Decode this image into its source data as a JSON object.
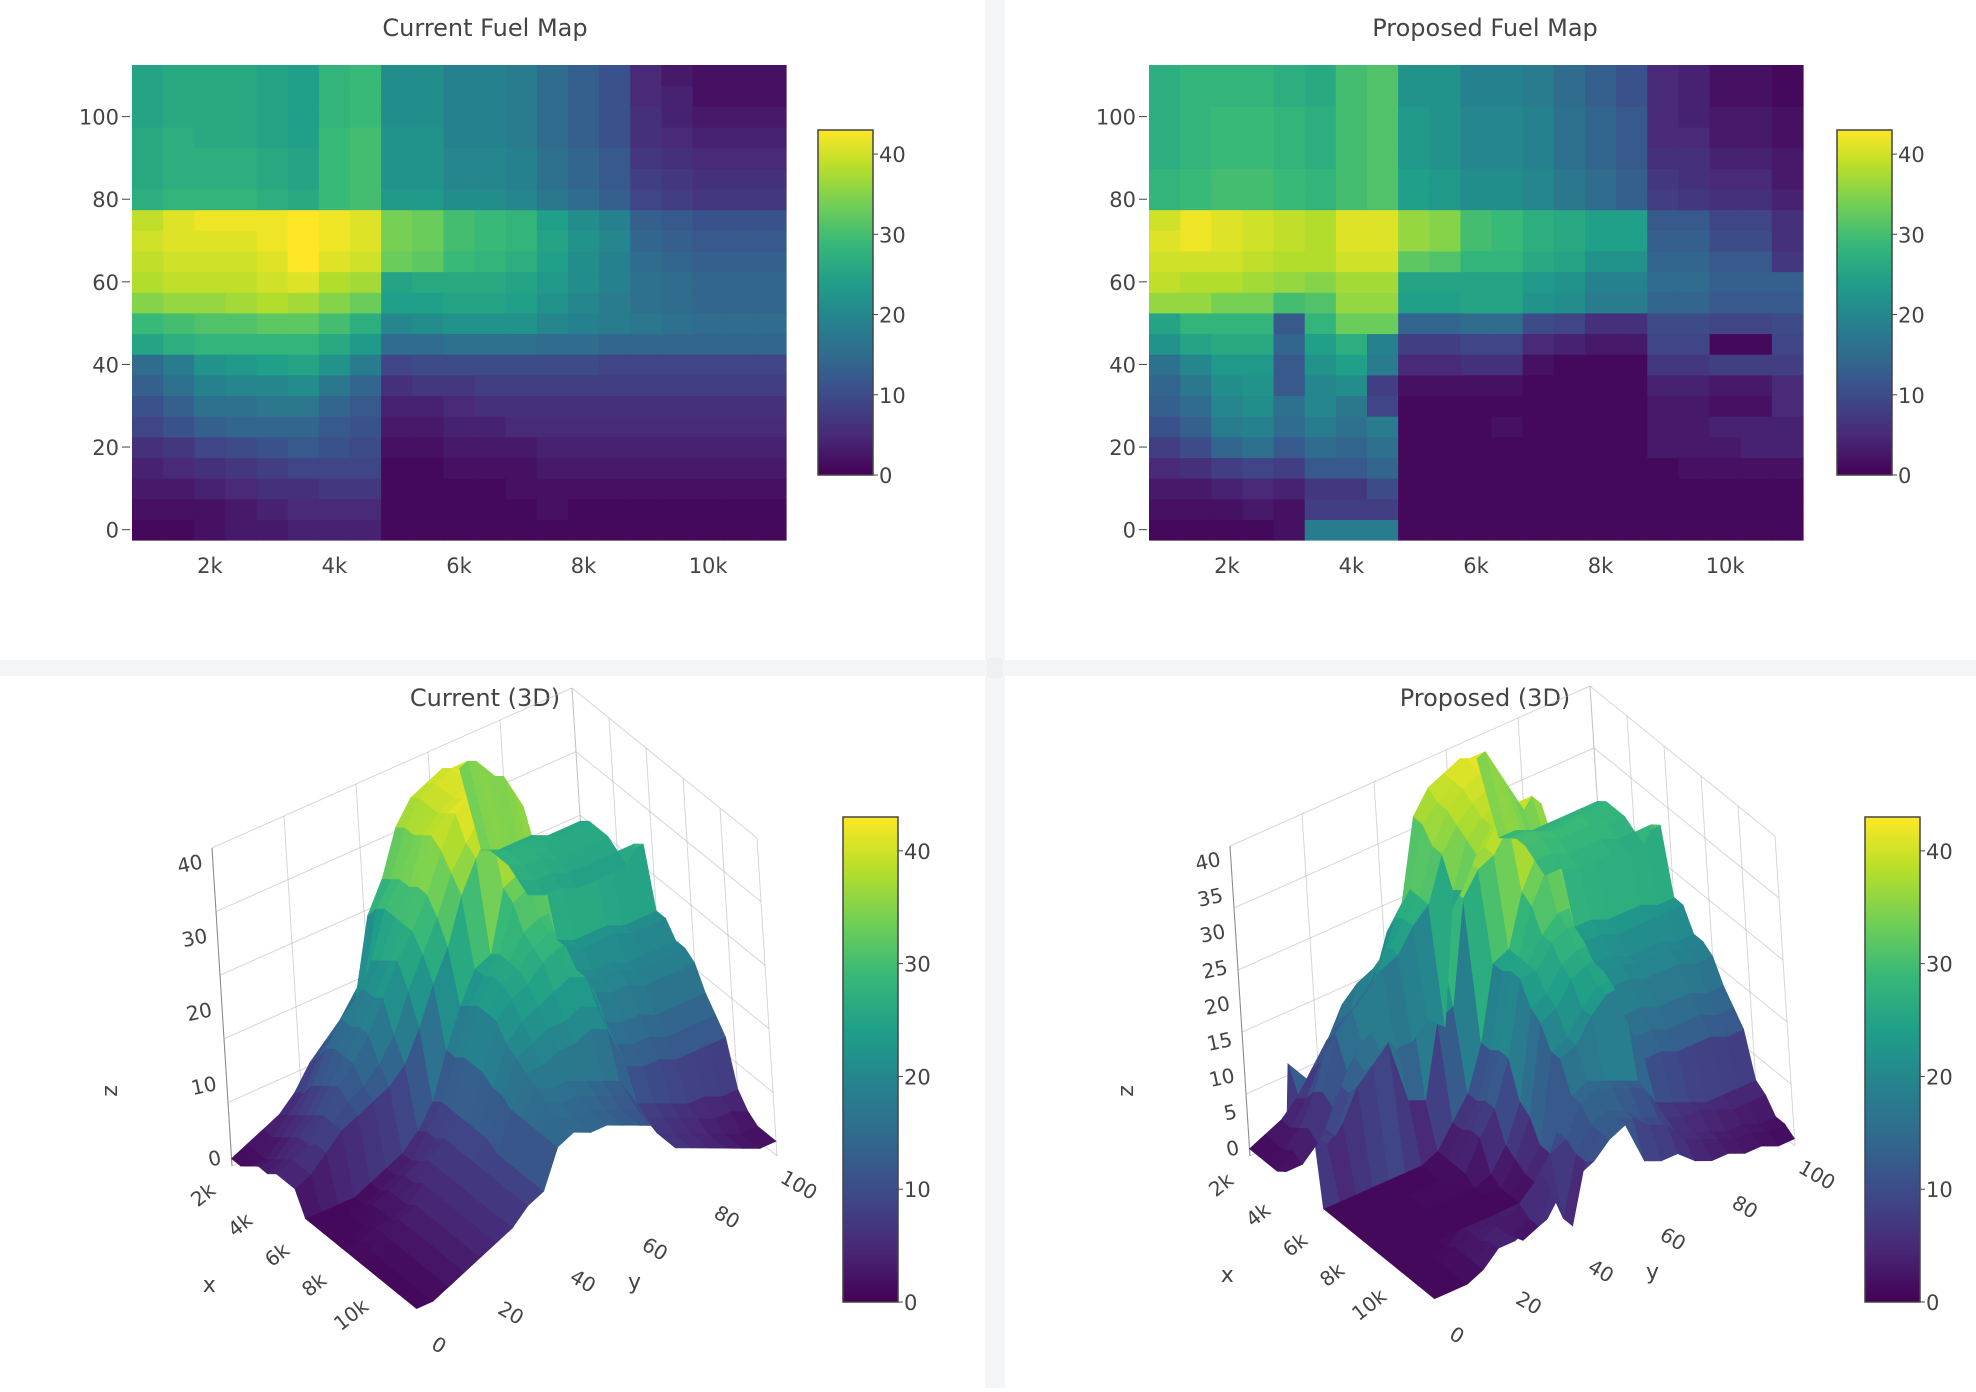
{
  "colorscale": [
    "#440154",
    "#482878",
    "#3e4989",
    "#31688e",
    "#26828e",
    "#1f9e89",
    "#35b779",
    "#6ece58",
    "#b5de2b",
    "#fde725"
  ],
  "chart_data": [
    {
      "type": "heatmap",
      "title": "Current Fuel Map",
      "x": [
        1000,
        1500,
        2000,
        2500,
        3000,
        3500,
        4000,
        4500,
        5000,
        5500,
        6000,
        6500,
        7000,
        7500,
        8000,
        8500,
        9000,
        9500,
        10000,
        10500,
        11000
      ],
      "y": [
        0,
        5,
        10,
        15,
        20,
        25,
        30,
        35,
        40,
        45,
        50,
        55,
        60,
        65,
        70,
        75,
        80,
        85,
        90,
        95,
        100,
        105,
        110
      ],
      "xticks": [
        "2k",
        "4k",
        "6k",
        "8k",
        "10k"
      ],
      "yticks": [
        "0",
        "20",
        "40",
        "60",
        "80",
        "100"
      ],
      "colorbar": {
        "min": 0,
        "max": 43,
        "ticks": [
          "0",
          "10",
          "20",
          "30",
          "40"
        ]
      },
      "z": [
        [
          1,
          1,
          2,
          3,
          3,
          4,
          4,
          4,
          1,
          1,
          1,
          1,
          1,
          1,
          1,
          1,
          1,
          1,
          1,
          1,
          1
        ],
        [
          2,
          2,
          2,
          3,
          4,
          5,
          5,
          5,
          1,
          1,
          1,
          1,
          1,
          2,
          1,
          1,
          1,
          1,
          1,
          1,
          1
        ],
        [
          3,
          3,
          4,
          5,
          6,
          6,
          7,
          7,
          1,
          1,
          1,
          1,
          2,
          2,
          2,
          2,
          2,
          2,
          2,
          2,
          2
        ],
        [
          4,
          5,
          6,
          7,
          8,
          9,
          9,
          9,
          1,
          1,
          2,
          2,
          2,
          3,
          3,
          3,
          3,
          3,
          3,
          3,
          3
        ],
        [
          6,
          7,
          9,
          10,
          11,
          12,
          11,
          10,
          2,
          2,
          3,
          3,
          3,
          4,
          4,
          4,
          4,
          4,
          4,
          4,
          4
        ],
        [
          9,
          11,
          13,
          14,
          14,
          14,
          12,
          11,
          3,
          3,
          4,
          4,
          5,
          5,
          5,
          5,
          5,
          5,
          5,
          5,
          5
        ],
        [
          11,
          13,
          16,
          16,
          17,
          17,
          14,
          12,
          4,
          4,
          5,
          6,
          6,
          6,
          6,
          6,
          6,
          6,
          6,
          6,
          6
        ],
        [
          13,
          16,
          19,
          20,
          20,
          21,
          17,
          14,
          6,
          7,
          7,
          8,
          8,
          8,
          8,
          8,
          8,
          8,
          8,
          8,
          8
        ],
        [
          15,
          18,
          22,
          23,
          24,
          25,
          22,
          18,
          9,
          10,
          10,
          10,
          10,
          10,
          10,
          9,
          9,
          9,
          9,
          9,
          9
        ],
        [
          25,
          27,
          28,
          28,
          28,
          28,
          26,
          23,
          15,
          15,
          16,
          16,
          16,
          15,
          15,
          14,
          14,
          14,
          14,
          14,
          14
        ],
        [
          29,
          30,
          31,
          31,
          32,
          32,
          30,
          27,
          20,
          21,
          22,
          22,
          22,
          20,
          19,
          18,
          17,
          16,
          15,
          15,
          15
        ],
        [
          35,
          36,
          36,
          37,
          38,
          37,
          35,
          33,
          24,
          24,
          25,
          25,
          24,
          22,
          20,
          18,
          16,
          15,
          14,
          14,
          14
        ],
        [
          38,
          39,
          39,
          39,
          40,
          41,
          38,
          37,
          25,
          26,
          26,
          26,
          25,
          23,
          21,
          19,
          16,
          15,
          14,
          14,
          14
        ],
        [
          39,
          40,
          40,
          40,
          41,
          43,
          41,
          40,
          33,
          32,
          29,
          28,
          27,
          24,
          21,
          19,
          15,
          14,
          13,
          13,
          13
        ],
        [
          40,
          41,
          41,
          41,
          42,
          43,
          42,
          41,
          34,
          33,
          30,
          29,
          28,
          25,
          22,
          20,
          14,
          13,
          12,
          12,
          12
        ],
        [
          39,
          41,
          42,
          42,
          42,
          43,
          42,
          41,
          34,
          33,
          30,
          29,
          28,
          24,
          21,
          19,
          13,
          12,
          11,
          11,
          11
        ],
        [
          27,
          28,
          28,
          28,
          27,
          26,
          29,
          30,
          23,
          23,
          21,
          21,
          20,
          17,
          15,
          13,
          9,
          8,
          7,
          7,
          7
        ],
        [
          26,
          27,
          27,
          27,
          26,
          25,
          29,
          30,
          22,
          22,
          20,
          20,
          19,
          16,
          14,
          12,
          8,
          7,
          6,
          6,
          6
        ],
        [
          26,
          27,
          27,
          27,
          26,
          25,
          29,
          30,
          22,
          22,
          20,
          20,
          19,
          16,
          14,
          12,
          7,
          6,
          5,
          5,
          5
        ],
        [
          26,
          27,
          26,
          26,
          25,
          24,
          29,
          30,
          22,
          22,
          19,
          19,
          18,
          15,
          13,
          11,
          6,
          5,
          4,
          4,
          4
        ],
        [
          25,
          26,
          26,
          26,
          25,
          24,
          28,
          29,
          21,
          21,
          19,
          19,
          18,
          15,
          13,
          11,
          6,
          4,
          3,
          3,
          3
        ],
        [
          25,
          26,
          26,
          26,
          25,
          24,
          28,
          29,
          21,
          21,
          19,
          19,
          18,
          15,
          13,
          11,
          5,
          4,
          2,
          2,
          2
        ],
        [
          25,
          26,
          26,
          26,
          25,
          24,
          28,
          29,
          21,
          21,
          19,
          19,
          18,
          15,
          13,
          11,
          5,
          3,
          2,
          2,
          2
        ]
      ]
    },
    {
      "type": "heatmap",
      "title": "Proposed Fuel Map",
      "x": [
        1000,
        1500,
        2000,
        2500,
        3000,
        3500,
        4000,
        4500,
        5000,
        5500,
        6000,
        6500,
        7000,
        7500,
        8000,
        8500,
        9000,
        9500,
        10000,
        10500,
        11000
      ],
      "y": [
        0,
        5,
        10,
        15,
        20,
        25,
        30,
        35,
        40,
        45,
        50,
        55,
        60,
        65,
        70,
        75,
        80,
        85,
        90,
        95,
        100,
        105,
        110
      ],
      "xticks": [
        "2k",
        "4k",
        "6k",
        "8k",
        "10k"
      ],
      "yticks": [
        "0",
        "20",
        "40",
        "60",
        "80",
        "100"
      ],
      "colorbar": {
        "min": 0,
        "max": 43,
        "ticks": [
          "0",
          "10",
          "20",
          "30",
          "40"
        ]
      },
      "z": [
        [
          1,
          1,
          1,
          1,
          2,
          18,
          18,
          18,
          1,
          1,
          1,
          1,
          1,
          1,
          1,
          1,
          1,
          1,
          1,
          1,
          1
        ],
        [
          2,
          2,
          2,
          3,
          2,
          8,
          8,
          8,
          1,
          1,
          1,
          1,
          1,
          1,
          1,
          1,
          1,
          1,
          1,
          1,
          1
        ],
        [
          3,
          3,
          4,
          5,
          4,
          7,
          7,
          10,
          1,
          1,
          1,
          1,
          1,
          1,
          1,
          1,
          1,
          1,
          1,
          1,
          1
        ],
        [
          5,
          6,
          8,
          9,
          8,
          12,
          12,
          14,
          1,
          1,
          1,
          1,
          1,
          1,
          1,
          1,
          1,
          2,
          2,
          2,
          2
        ],
        [
          8,
          10,
          14,
          16,
          12,
          15,
          14,
          16,
          1,
          1,
          1,
          1,
          1,
          1,
          1,
          1,
          3,
          3,
          3,
          4,
          4
        ],
        [
          11,
          13,
          18,
          19,
          15,
          18,
          16,
          18,
          1,
          1,
          1,
          2,
          1,
          1,
          1,
          1,
          3,
          3,
          4,
          4,
          4
        ],
        [
          13,
          15,
          20,
          21,
          16,
          20,
          17,
          9,
          1,
          1,
          1,
          1,
          1,
          1,
          1,
          1,
          3,
          3,
          2,
          2,
          5
        ],
        [
          14,
          17,
          21,
          22,
          12,
          20,
          21,
          8,
          2,
          2,
          2,
          2,
          1,
          1,
          1,
          1,
          4,
          4,
          3,
          3,
          5
        ],
        [
          16,
          20,
          23,
          23,
          12,
          22,
          24,
          18,
          5,
          5,
          6,
          6,
          2,
          1,
          1,
          1,
          7,
          7,
          8,
          8,
          8
        ],
        [
          22,
          25,
          26,
          26,
          14,
          24,
          27,
          19,
          8,
          8,
          9,
          9,
          5,
          4,
          3,
          3,
          9,
          9,
          1,
          1,
          9
        ],
        [
          25,
          28,
          28,
          28,
          12,
          28,
          33,
          33,
          14,
          14,
          15,
          15,
          10,
          9,
          6,
          6,
          10,
          10,
          9,
          9,
          10
        ],
        [
          36,
          36,
          34,
          34,
          30,
          31,
          36,
          36,
          24,
          24,
          25,
          25,
          22,
          21,
          18,
          18,
          14,
          14,
          12,
          12,
          12
        ],
        [
          39,
          38,
          38,
          37,
          36,
          35,
          37,
          37,
          25,
          25,
          25,
          25,
          23,
          22,
          19,
          19,
          15,
          15,
          13,
          13,
          13
        ],
        [
          40,
          40,
          40,
          39,
          38,
          38,
          40,
          40,
          32,
          31,
          28,
          28,
          26,
          25,
          22,
          22,
          14,
          14,
          12,
          12,
          7
        ],
        [
          41,
          42,
          41,
          40,
          39,
          38,
          41,
          41,
          36,
          35,
          30,
          29,
          27,
          26,
          24,
          24,
          13,
          13,
          10,
          10,
          6
        ],
        [
          40,
          42,
          41,
          40,
          39,
          38,
          41,
          41,
          36,
          35,
          30,
          29,
          27,
          26,
          24,
          24,
          12,
          12,
          9,
          9,
          6
        ],
        [
          28,
          29,
          30,
          30,
          29,
          28,
          30,
          31,
          24,
          23,
          21,
          21,
          20,
          17,
          15,
          13,
          8,
          7,
          6,
          6,
          4
        ],
        [
          28,
          29,
          30,
          30,
          29,
          28,
          30,
          31,
          24,
          23,
          21,
          21,
          20,
          17,
          15,
          13,
          7,
          6,
          5,
          5,
          3
        ],
        [
          27,
          28,
          29,
          29,
          28,
          27,
          30,
          31,
          23,
          22,
          20,
          20,
          19,
          16,
          14,
          12,
          6,
          6,
          4,
          4,
          3
        ],
        [
          27,
          28,
          29,
          29,
          28,
          27,
          30,
          31,
          23,
          22,
          20,
          20,
          19,
          16,
          14,
          12,
          5,
          5,
          3,
          3,
          2
        ],
        [
          27,
          28,
          29,
          29,
          28,
          27,
          30,
          31,
          23,
          22,
          20,
          20,
          19,
          16,
          14,
          12,
          5,
          4,
          3,
          3,
          2
        ],
        [
          27,
          28,
          28,
          28,
          27,
          26,
          30,
          31,
          22,
          22,
          19,
          19,
          18,
          15,
          13,
          11,
          5,
          4,
          2,
          2,
          1
        ],
        [
          27,
          28,
          28,
          28,
          27,
          26,
          30,
          31,
          22,
          22,
          19,
          19,
          18,
          15,
          13,
          11,
          5,
          4,
          2,
          2,
          1
        ]
      ]
    },
    {
      "type": "surface",
      "title": "Current (3D)",
      "xlabel": "x",
      "ylabel": "y",
      "zlabel": "z",
      "xticks": [
        "2k",
        "4k",
        "6k",
        "8k",
        "10k"
      ],
      "yticks": [
        "0",
        "20",
        "40",
        "60",
        "80",
        "100"
      ],
      "zticks": [
        "0",
        "10",
        "20",
        "30",
        "40"
      ],
      "zlim": [
        0,
        43
      ],
      "colorbar": {
        "min": 0,
        "max": 43,
        "ticks": [
          "0",
          "10",
          "20",
          "30",
          "40"
        ]
      }
    },
    {
      "type": "surface",
      "title": "Proposed (3D)",
      "xlabel": "x",
      "ylabel": "y",
      "zlabel": "z",
      "xticks": [
        "2k",
        "4k",
        "6k",
        "8k",
        "10k"
      ],
      "yticks": [
        "0",
        "20",
        "40",
        "60",
        "80",
        "100"
      ],
      "zticks": [
        "0",
        "5",
        "10",
        "15",
        "20",
        "25",
        "30",
        "35",
        "40"
      ],
      "zlim": [
        0,
        43
      ],
      "colorbar": {
        "min": 0,
        "max": 43,
        "ticks": [
          "0",
          "10",
          "20",
          "30",
          "40"
        ]
      }
    }
  ]
}
